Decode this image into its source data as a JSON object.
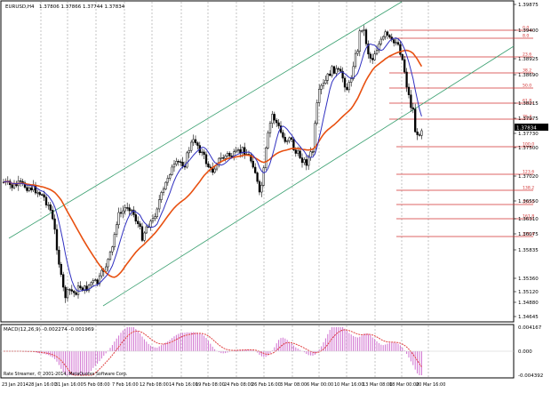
{
  "header": {
    "symbol": "EURUSD,H4",
    "ohlc": "1.37806 1.37866 1.37744 1.37834"
  },
  "price_scale": {
    "labels": [
      "1.39875",
      "1.39400",
      "1.38925",
      "1.38690",
      "1.38215",
      "1.37975",
      "1.37730",
      "1.37500",
      "1.37020",
      "1.36550",
      "1.36310",
      "1.36075",
      "1.35835",
      "1.35360",
      "1.35120",
      "1.34880",
      "1.34645"
    ],
    "current_price": "1.37834"
  },
  "fibo": {
    "levels": [
      "0.0",
      "8.0",
      "23.6",
      "38.2",
      "50.0",
      "61.8",
      "76.4",
      "100.0",
      "123.6",
      "138.2",
      "150.0",
      "161.8",
      "176.4"
    ]
  },
  "macd": {
    "label": "MACD(12,26,9) -0.002274 -0.001969",
    "scale_top": "0.004167",
    "scale_zero": "0.000",
    "scale_bottom": "-0.004392"
  },
  "time_axis": {
    "labels": [
      "23 Jan 2014",
      "28 Jan 16:00",
      "31 Jan 16:00",
      "5 Feb 08:00",
      "7 Feb 16:00",
      "12 Feb 08:00",
      "14 Feb 16:00",
      "19 Feb 08:00",
      "24 Feb 08:00",
      "26 Feb 16:00",
      "3 Mar 08:00",
      "6 Mar 00:00",
      "10 Mar 16:00",
      "13 Mar 08:00",
      "18 Mar 00:00",
      "20 Mar 16:00"
    ]
  },
  "copyright": "Rate Streamer, © 2001-2014, MetaQuotes Software Corp.",
  "colors": {
    "candle": "#000000",
    "ma_fast": "#3030c0",
    "ma_slow": "#e85010",
    "channel": "#3aa070",
    "fibo": "#d03030",
    "macd_hist": "#d070d0",
    "macd_signal": "#e04040",
    "grid": "#888888",
    "price_tag": "#000000"
  }
}
